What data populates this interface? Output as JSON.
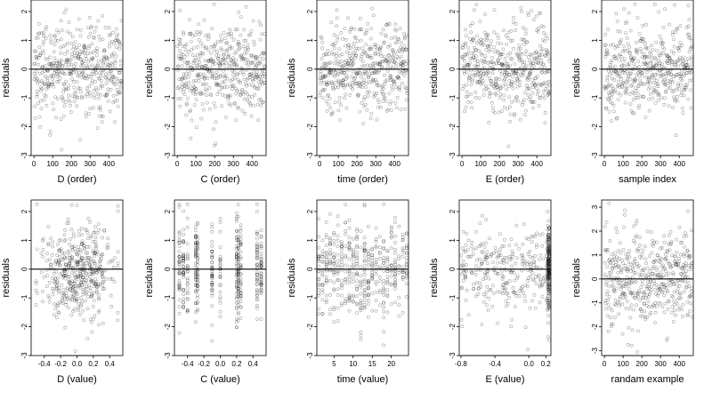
{
  "figure": {
    "point_color": "#000000",
    "background": "#ffffff"
  },
  "chart_data": [
    {
      "id": "p1",
      "type": "scatter",
      "xlabel": "D (order)",
      "ylabel": "residuals",
      "xlim": [
        -15,
        475
      ],
      "ylim": [
        -3,
        2.4
      ],
      "xticks": [
        0,
        100,
        200,
        300,
        400
      ],
      "xtick_labels": [
        "0",
        "100",
        "200",
        "300",
        "400"
      ],
      "yticks": [
        -3,
        -2,
        -1,
        0,
        1,
        2
      ],
      "ytick_labels": [
        "-3",
        "-2",
        "-1",
        "0",
        "1",
        "2"
      ],
      "hline": 0,
      "n_points": 470,
      "x_distribution": "uniform index 1..470",
      "y_distribution": "normal, mean 0, sd ~0.8, range about -2.6 to 2.2"
    },
    {
      "id": "p2",
      "type": "scatter",
      "xlabel": "C (order)",
      "ylabel": "residuals",
      "xlim": [
        -15,
        475
      ],
      "ylim": [
        -3,
        2.4
      ],
      "xticks": [
        0,
        100,
        200,
        300,
        400
      ],
      "xtick_labels": [
        "0",
        "100",
        "200",
        "300",
        "400"
      ],
      "yticks": [
        -3,
        -2,
        -1,
        0,
        1,
        2
      ],
      "ytick_labels": [
        "-3",
        "-2",
        "-1",
        "0",
        "1",
        "2"
      ],
      "hline": 0,
      "n_points": 470,
      "x_distribution": "uniform index 1..470",
      "y_distribution": "normal, mean 0, sd ~0.8"
    },
    {
      "id": "p3",
      "type": "scatter",
      "xlabel": "time (order)",
      "ylabel": "residuals",
      "xlim": [
        -15,
        475
      ],
      "ylim": [
        -3,
        2.4
      ],
      "xticks": [
        0,
        100,
        200,
        300,
        400
      ],
      "xtick_labels": [
        "0",
        "100",
        "200",
        "300",
        "400"
      ],
      "yticks": [
        -3,
        -2,
        -1,
        0,
        1,
        2
      ],
      "ytick_labels": [
        "-3",
        "-2",
        "-1",
        "0",
        "1",
        "2"
      ],
      "hline": 0,
      "n_points": 470,
      "x_distribution": "uniform index 1..470",
      "y_distribution": "normal, mean 0, sd ~0.8"
    },
    {
      "id": "p4",
      "type": "scatter",
      "xlabel": "E (order)",
      "ylabel": "residuals",
      "xlim": [
        -15,
        475
      ],
      "ylim": [
        -3,
        2.4
      ],
      "xticks": [
        0,
        100,
        200,
        300,
        400
      ],
      "xtick_labels": [
        "0",
        "100",
        "200",
        "300",
        "400"
      ],
      "yticks": [
        -3,
        -2,
        -1,
        0,
        1,
        2
      ],
      "ytick_labels": [
        "-3",
        "-2",
        "-1",
        "0",
        "1",
        "2"
      ],
      "hline": 0,
      "n_points": 470,
      "x_distribution": "uniform index 1..470",
      "y_distribution": "normal, mean 0, sd ~0.8"
    },
    {
      "id": "p5",
      "type": "scatter",
      "xlabel": "sample index",
      "ylabel": "residuals",
      "xlim": [
        -15,
        475
      ],
      "ylim": [
        -3,
        2.4
      ],
      "xticks": [
        0,
        100,
        200,
        300,
        400
      ],
      "xtick_labels": [
        "0",
        "100",
        "200",
        "300",
        "400"
      ],
      "yticks": [
        -3,
        -2,
        -1,
        0,
        1,
        2
      ],
      "ytick_labels": [
        "-3",
        "-2",
        "-1",
        "0",
        "1",
        "2"
      ],
      "hline": 0,
      "n_points": 470,
      "x_distribution": "uniform index 1..470",
      "y_distribution": "normal, mean 0, sd ~0.8"
    },
    {
      "id": "p6",
      "type": "scatter",
      "xlabel": "D (value)",
      "ylabel": "residuals",
      "xlim": [
        -0.56,
        0.56
      ],
      "ylim": [
        -3,
        2.4
      ],
      "xticks": [
        -0.4,
        -0.2,
        0.0,
        0.2,
        0.4
      ],
      "xtick_labels": [
        "-0.4",
        "-0.2",
        "0.0",
        "0.2",
        "0.4"
      ],
      "yticks": [
        -3,
        -2,
        -1,
        0,
        1,
        2
      ],
      "ytick_labels": [
        "-3",
        "-2",
        "-1",
        "0",
        "1",
        "2"
      ],
      "hline": 0,
      "n_points": 470,
      "x_distribution": "continuous on [-0.5, 0.5], denser near 0",
      "y_distribution": "normal, mean 0, sd ~0.8"
    },
    {
      "id": "p7",
      "type": "scatter",
      "xlabel": "C (value)",
      "ylabel": "residuals",
      "xlim": [
        -0.56,
        0.56
      ],
      "ylim": [
        -3,
        2.4
      ],
      "xticks": [
        -0.4,
        -0.2,
        0.0,
        0.2,
        0.4
      ],
      "xtick_labels": [
        "-0.4",
        "-0.2",
        "0.0",
        "0.2",
        "0.4"
      ],
      "yticks": [
        -3,
        -2,
        -1,
        0,
        1,
        2
      ],
      "ytick_labels": [
        "-3",
        "-2",
        "-1",
        "0",
        "1",
        "2"
      ],
      "hline": 0,
      "n_points": 470,
      "x_levels": [
        -0.5,
        -0.45,
        -0.4,
        -0.3,
        -0.28,
        -0.1,
        0.0,
        0.2,
        0.22,
        0.25,
        0.45,
        0.5
      ],
      "y_distribution": "normal, mean 0, sd ~0.8"
    },
    {
      "id": "p8",
      "type": "scatter",
      "xlabel": "time (value)",
      "ylabel": "residuals",
      "xlim": [
        0.5,
        24.5
      ],
      "ylim": [
        -3,
        2.4
      ],
      "xticks": [
        5,
        10,
        15,
        20
      ],
      "xtick_labels": [
        "5",
        "10",
        "15",
        "20"
      ],
      "yticks": [
        -3,
        -2,
        -1,
        0,
        1,
        2
      ],
      "ytick_labels": [
        "-3",
        "-2",
        "-1",
        "0",
        "1",
        "2"
      ],
      "hline": 0,
      "n_points": 470,
      "x_distribution": "integer days 1..24",
      "y_distribution": "normal, mean 0, sd ~0.8"
    },
    {
      "id": "p9",
      "type": "scatter",
      "xlabel": "E (value)",
      "ylabel": "residuals",
      "xlim": [
        -0.82,
        0.26
      ],
      "ylim": [
        -3,
        2.4
      ],
      "xticks": [
        -0.8,
        -0.4,
        0.0,
        0.2
      ],
      "xtick_labels": [
        "-0.8",
        "-0.4",
        "0.0",
        "0.2"
      ],
      "yticks": [
        -3,
        -2,
        -1,
        0,
        1,
        2
      ],
      "ytick_labels": [
        "-3",
        "-2",
        "-1",
        "0",
        "1",
        "2"
      ],
      "hline": 0,
      "n_points": 470,
      "x_distribution": "spread on [-0.8, 0.25] with large cluster at 0.22-0.24",
      "y_distribution": "normal, mean 0, sd ~0.8"
    },
    {
      "id": "p10",
      "type": "scatter",
      "xlabel": "randam example",
      "ylabel": "residuals",
      "xlim": [
        -15,
        475
      ],
      "ylim": [
        -3.2,
        3.3
      ],
      "xticks": [
        0,
        100,
        200,
        300,
        400
      ],
      "xtick_labels": [
        "0",
        "100",
        "200",
        "300",
        "400"
      ],
      "yticks": [
        -3,
        -2,
        -1,
        0,
        1,
        2,
        3
      ],
      "ytick_labels": [
        "-3",
        "-2",
        "-1",
        "0",
        "1",
        "2",
        "3"
      ],
      "hline": 0,
      "n_points": 470,
      "x_distribution": "uniform index 1..470",
      "y_distribution": "normal, mean 0, sd ~1"
    }
  ]
}
